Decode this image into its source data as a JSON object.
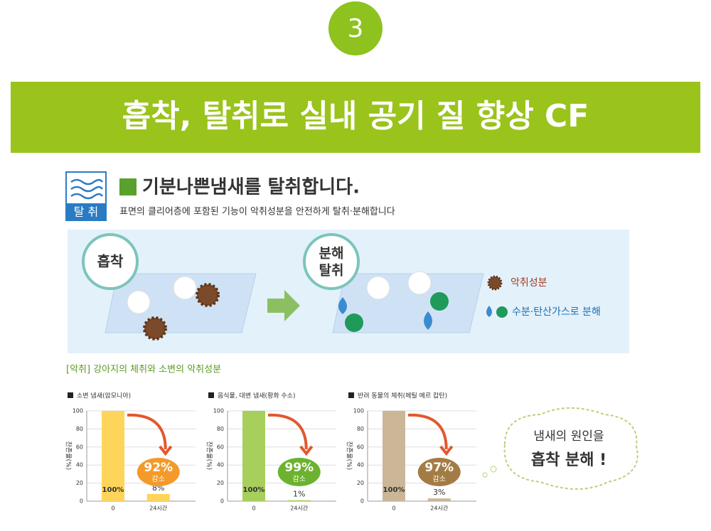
{
  "header": {
    "step": "3",
    "banner": "흡착, 탈취로 실내 공기 질 향상 CF"
  },
  "intro": {
    "icon_label": "탈 취",
    "heading": "기분나쁜냄새를 탈취합니다.",
    "subheading": "표면의 클리어층에 포함된 기능이 악취성분을 안전하게 탈취·분해합니다"
  },
  "diagram": {
    "stage_1": "흡착",
    "stage_2": [
      "분해",
      "탈취"
    ],
    "legend": [
      "악취성분",
      "수분·탄산가스로 분해"
    ]
  },
  "section_title": "[악취] 강아지의 체취와 소변의 악취성분",
  "chart_data": [
    {
      "type": "bar",
      "title": "소변 냄새(암모니아)",
      "y_label": "잔존율(%)",
      "categories": [
        "0",
        "24시간"
      ],
      "values": [
        100,
        8
      ],
      "value_labels": [
        "100%",
        "8%"
      ],
      "color": "#ffd45a",
      "ylim": [
        0,
        100
      ],
      "yticks": [
        0,
        20,
        40,
        60,
        80,
        100
      ],
      "grid": true,
      "annotation": "92%",
      "annotation_label": "감소",
      "annotation_color": "#f39a2b"
    },
    {
      "type": "bar",
      "title": "음식물, 대변 냄새(황화 수소)",
      "y_label": "잔존율(%)",
      "categories": [
        "0",
        "24시간"
      ],
      "values": [
        100,
        1
      ],
      "value_labels": [
        "100%",
        "1%"
      ],
      "color": "#a6cf5c",
      "ylim": [
        0,
        100
      ],
      "yticks": [
        0,
        20,
        40,
        60,
        80,
        100
      ],
      "grid": true,
      "annotation": "99%",
      "annotation_label": "감소",
      "annotation_color": "#6cb22f"
    },
    {
      "type": "bar",
      "title": "반려 동물의 체취(메틸 메르 캅탄)",
      "y_label": "잔존율(%)",
      "categories": [
        "0",
        "24시간"
      ],
      "values": [
        100,
        3
      ],
      "value_labels": [
        "100%",
        "3%"
      ],
      "color": "#cbb697",
      "ylim": [
        0,
        100
      ],
      "yticks": [
        0,
        20,
        40,
        60,
        80,
        100
      ],
      "grid": true,
      "annotation": "97%",
      "annotation_label": "감소",
      "annotation_color": "#a37c45"
    }
  ],
  "callout": [
    "냄새의 원인을",
    "흡착 분해 !"
  ]
}
